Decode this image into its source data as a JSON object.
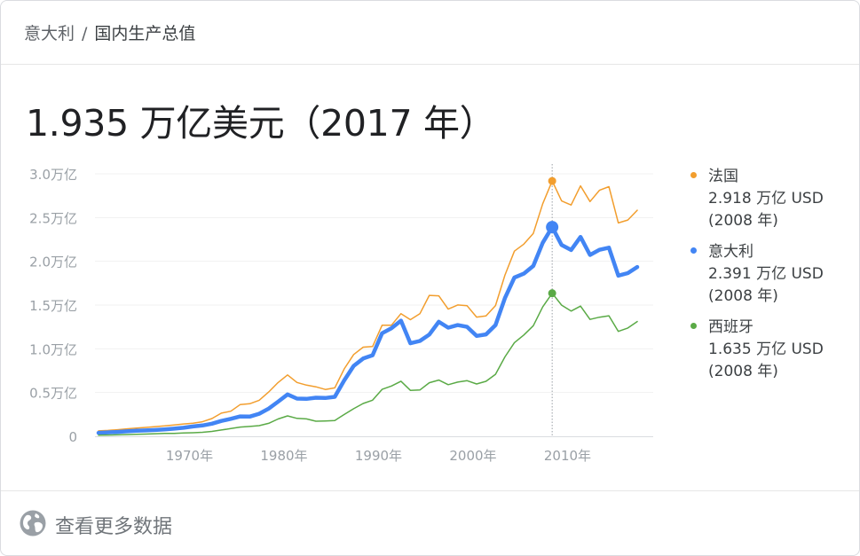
{
  "breadcrumb": {
    "parent": "意大利",
    "separator": "/",
    "current": "国内生产总值"
  },
  "headline": {
    "value": "1.935 万亿美元（2017 年）"
  },
  "chart_data": {
    "type": "line",
    "title": "",
    "xlabel": "",
    "ylabel": "",
    "xlim": [
      1960,
      2017
    ],
    "ylim": [
      0,
      3.0
    ],
    "y_ticks": [
      {
        "value": 0,
        "label": "0"
      },
      {
        "value": 0.5,
        "label": "0.5万亿"
      },
      {
        "value": 1.0,
        "label": "1.0万亿"
      },
      {
        "value": 1.5,
        "label": "1.5万亿"
      },
      {
        "value": 2.0,
        "label": "2.0万亿"
      },
      {
        "value": 2.5,
        "label": "2.5万亿"
      },
      {
        "value": 3.0,
        "label": "3.0万亿"
      }
    ],
    "x_ticks": [
      {
        "value": 1970,
        "label": "1970年"
      },
      {
        "value": 1980,
        "label": "1980年"
      },
      {
        "value": 1990,
        "label": "1990年"
      },
      {
        "value": 2000,
        "label": "2000年"
      },
      {
        "value": 2010,
        "label": "2010年"
      }
    ],
    "grid": true,
    "legend_position": "right",
    "highlight_year": 2008,
    "x": [
      1960,
      1961,
      1962,
      1963,
      1964,
      1965,
      1966,
      1967,
      1968,
      1969,
      1970,
      1971,
      1972,
      1973,
      1974,
      1975,
      1976,
      1977,
      1978,
      1979,
      1980,
      1981,
      1982,
      1983,
      1984,
      1985,
      1986,
      1987,
      1988,
      1989,
      1990,
      1991,
      1992,
      1993,
      1994,
      1995,
      1996,
      1997,
      1998,
      1999,
      2000,
      2001,
      2002,
      2003,
      2004,
      2005,
      2006,
      2007,
      2008,
      2009,
      2010,
      2011,
      2012,
      2013,
      2014,
      2015,
      2016,
      2017
    ],
    "series": [
      {
        "name": "法国",
        "color": "#f29e2e",
        "width": 1.5,
        "values": [
          0.062,
          0.067,
          0.075,
          0.085,
          0.094,
          0.101,
          0.11,
          0.119,
          0.13,
          0.141,
          0.149,
          0.166,
          0.203,
          0.265,
          0.287,
          0.363,
          0.372,
          0.411,
          0.506,
          0.614,
          0.701,
          0.615,
          0.585,
          0.566,
          0.535,
          0.553,
          0.771,
          0.934,
          1.019,
          1.026,
          1.269,
          1.27,
          1.402,
          1.333,
          1.401,
          1.61,
          1.605,
          1.453,
          1.501,
          1.492,
          1.362,
          1.376,
          1.494,
          1.841,
          2.116,
          2.196,
          2.319,
          2.657,
          2.918,
          2.69,
          2.643,
          2.862,
          2.683,
          2.811,
          2.853,
          2.439,
          2.472,
          2.583
        ],
        "highlight_label": "2.918 万亿 USD",
        "highlight_year_label": "(2008 年)"
      },
      {
        "name": "意大利",
        "color": "#4285f4",
        "width": 4.5,
        "values": [
          0.04,
          0.045,
          0.05,
          0.057,
          0.063,
          0.067,
          0.072,
          0.079,
          0.087,
          0.097,
          0.113,
          0.124,
          0.144,
          0.175,
          0.2,
          0.227,
          0.225,
          0.257,
          0.316,
          0.395,
          0.478,
          0.431,
          0.428,
          0.441,
          0.438,
          0.451,
          0.64,
          0.805,
          0.889,
          0.926,
          1.178,
          1.235,
          1.322,
          1.063,
          1.09,
          1.162,
          1.308,
          1.242,
          1.271,
          1.251,
          1.147,
          1.165,
          1.271,
          1.579,
          1.814,
          1.859,
          1.947,
          2.211,
          2.391,
          2.186,
          2.129,
          2.278,
          2.073,
          2.131,
          2.156,
          1.836,
          1.865,
          1.935
        ],
        "highlight_label": "2.391 万亿 USD",
        "highlight_year_label": "(2008 年)"
      },
      {
        "name": "西班牙",
        "color": "#5aaa46",
        "width": 1.5,
        "values": [
          0.012,
          0.014,
          0.016,
          0.019,
          0.022,
          0.025,
          0.029,
          0.033,
          0.033,
          0.037,
          0.041,
          0.046,
          0.056,
          0.072,
          0.088,
          0.105,
          0.113,
          0.122,
          0.148,
          0.198,
          0.233,
          0.205,
          0.199,
          0.172,
          0.175,
          0.18,
          0.249,
          0.315,
          0.375,
          0.413,
          0.536,
          0.575,
          0.629,
          0.525,
          0.529,
          0.612,
          0.643,
          0.59,
          0.619,
          0.635,
          0.598,
          0.628,
          0.708,
          0.907,
          1.07,
          1.157,
          1.264,
          1.479,
          1.635,
          1.499,
          1.431,
          1.488,
          1.336,
          1.361,
          1.377,
          1.199,
          1.237,
          1.311
        ],
        "highlight_label": "1.635 万亿 USD",
        "highlight_year_label": "(2008 年)"
      }
    ]
  },
  "footer": {
    "more_label": "查看更多数据",
    "icon": "globe-icon"
  }
}
